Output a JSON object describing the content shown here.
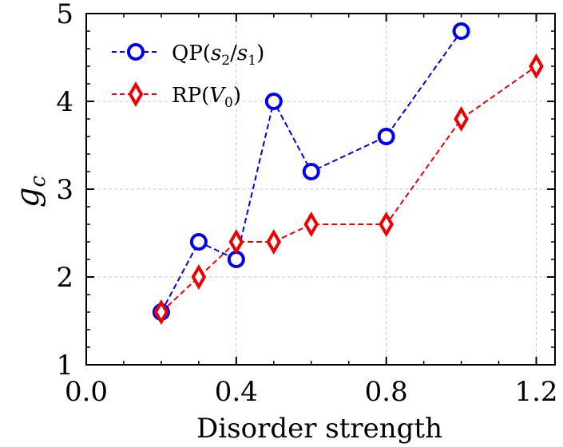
{
  "chart_data": {
    "type": "line",
    "xlabel": "Disorder strength",
    "ylabel_base": "g",
    "ylabel_sub": "c",
    "xlim": [
      0.0,
      1.25
    ],
    "ylim": [
      1,
      5
    ],
    "grid": true,
    "legend_position": "top-left",
    "x_ticks": [
      {
        "value": 0.0,
        "label": "0.0"
      },
      {
        "value": 0.4,
        "label": "0.4"
      },
      {
        "value": 0.8,
        "label": "0.8"
      },
      {
        "value": 1.2,
        "label": "1.2"
      }
    ],
    "x_minor_ticks": [
      0.1,
      0.2,
      0.3,
      0.5,
      0.6,
      0.7,
      0.9,
      1.0,
      1.1
    ],
    "y_ticks": [
      {
        "value": 1,
        "label": "1"
      },
      {
        "value": 2,
        "label": "2"
      },
      {
        "value": 3,
        "label": "3"
      },
      {
        "value": 4,
        "label": "4"
      },
      {
        "value": 5,
        "label": "5"
      }
    ],
    "y_minor_ticks": [
      1.2,
      1.4,
      1.6,
      1.8,
      2.2,
      2.4,
      2.6,
      2.8,
      3.2,
      3.4,
      3.6,
      3.8,
      4.2,
      4.4,
      4.6,
      4.8
    ],
    "series": [
      {
        "name": "QP(s2/s1)",
        "legend_base": "QP(",
        "legend_var1": "s",
        "legend_sub1": "2",
        "legend_slash": "/",
        "legend_var2": "s",
        "legend_sub2": "1",
        "legend_close": ")",
        "color": "#0000ee",
        "marker": "circle",
        "x": [
          0.2,
          0.3,
          0.4,
          0.5,
          0.6,
          0.8,
          1.0
        ],
        "y": [
          1.6,
          2.4,
          2.2,
          4.0,
          3.2,
          3.6,
          4.8
        ]
      },
      {
        "name": "RP(V0)",
        "legend_base": "RP(",
        "legend_var1": "V",
        "legend_sub1": "0",
        "legend_close": ")",
        "color": "#ee0000",
        "marker": "diamond",
        "x": [
          0.2,
          0.3,
          0.4,
          0.5,
          0.6,
          0.8,
          1.0,
          1.2
        ],
        "y": [
          1.6,
          2.0,
          2.4,
          2.4,
          2.6,
          2.6,
          3.8,
          4.4
        ]
      }
    ]
  }
}
